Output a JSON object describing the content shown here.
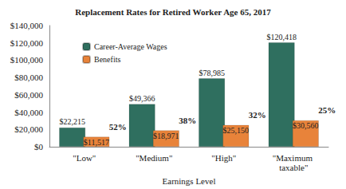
{
  "chart_data": {
    "type": "bar",
    "title": "Replacement Rates for Retired Worker Age 65, 2017",
    "x_label": "Earnings Level",
    "categories": [
      "\"Low\"",
      "\"Medium\"",
      "\"High\"",
      "\"Maximum taxable\""
    ],
    "series": [
      {
        "name": "Career-Average Wages",
        "color": "#2f6f5f",
        "values": [
          22215,
          49366,
          78985,
          120418
        ],
        "value_labels": [
          "$22,215",
          "$49,366",
          "$78,985",
          "$120,418"
        ]
      },
      {
        "name": "Benefits",
        "color": "#e8833a",
        "values": [
          11517,
          18971,
          25150,
          30560
        ],
        "value_labels": [
          "$11,517",
          "$18,971",
          "$25,150",
          "$30,560"
        ]
      }
    ],
    "annotations": [
      {
        "series": "Benefits",
        "category": "\"Low\"",
        "text": "52%"
      },
      {
        "series": "Benefits",
        "category": "\"Medium\"",
        "text": "38%"
      },
      {
        "series": "Benefits",
        "category": "\"High\"",
        "text": "32%"
      },
      {
        "series": "Benefits",
        "category": "\"Maximum taxable\"",
        "text": "25%"
      }
    ],
    "ylim": [
      0,
      140000
    ],
    "yticks": [
      {
        "value": 0,
        "label": "$0"
      },
      {
        "value": 20000,
        "label": "$20,000"
      },
      {
        "value": 40000,
        "label": "$40,000"
      },
      {
        "value": 60000,
        "label": "$60,000"
      },
      {
        "value": 80000,
        "label": "$80,000"
      },
      {
        "value": 100000,
        "label": "$100,000"
      },
      {
        "value": 120000,
        "label": "$120,000"
      },
      {
        "value": 140000,
        "label": "$140,000"
      }
    ],
    "grid": false,
    "legend": "upper left",
    "data_labels": true
  }
}
